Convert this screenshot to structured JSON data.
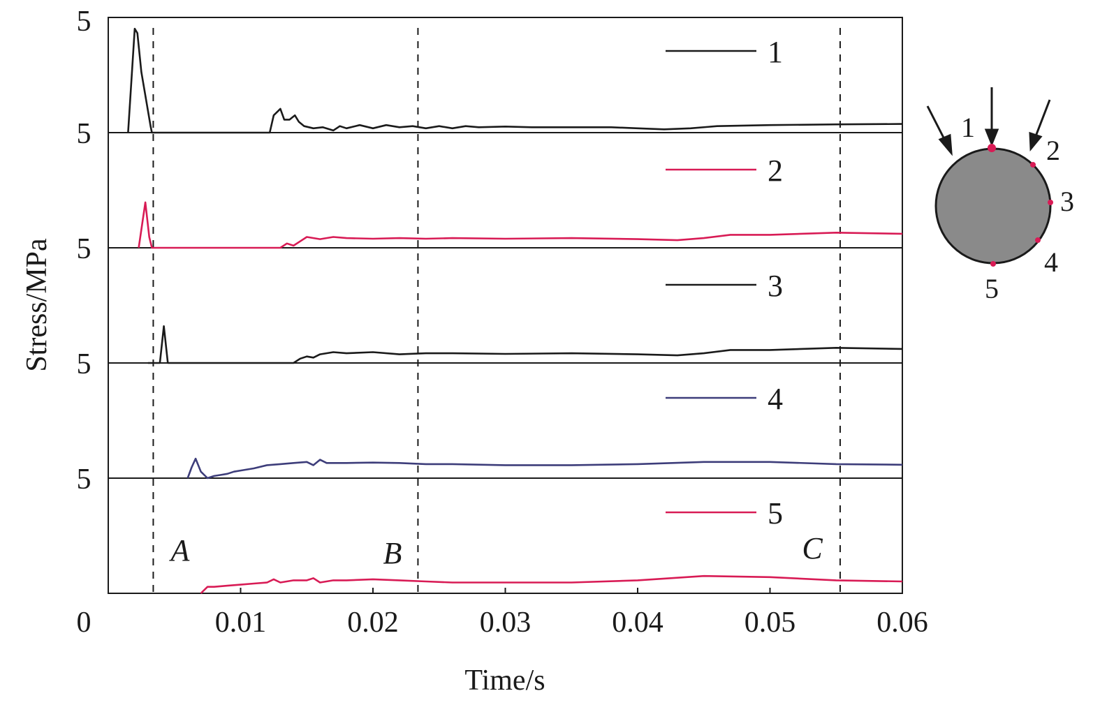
{
  "chart_data": {
    "type": "line",
    "layout": "stacked-panels",
    "xlabel": "Time/s",
    "ylabel": "Stress/MPa",
    "xlim": [
      0,
      0.06
    ],
    "x_ticks": [
      "0",
      "0.01",
      "0.02",
      "0.03",
      "0.04",
      "0.05",
      "0.06"
    ],
    "panel_y_tick_label": "5",
    "y_tick_labels": [
      "5",
      "5",
      "5",
      "5",
      "5"
    ],
    "panel_ylim": [
      0,
      5
    ],
    "markers": [
      {
        "label": "A",
        "x": 0.0034
      },
      {
        "label": "B",
        "x": 0.0234
      },
      {
        "label": "C",
        "x": 0.0553
      }
    ],
    "legend": [
      "1",
      "2",
      "3",
      "4",
      "5"
    ],
    "series": [
      {
        "name": "1",
        "color": "#1a1a1a",
        "x": [
          0.0015,
          0.002,
          0.0022,
          0.0025,
          0.0032,
          0.0033,
          0.0122,
          0.0125,
          0.013,
          0.0133,
          0.0137,
          0.0141,
          0.0144,
          0.0148,
          0.0155,
          0.0162,
          0.017,
          0.0175,
          0.018,
          0.019,
          0.02,
          0.021,
          0.022,
          0.023,
          0.024,
          0.025,
          0.026,
          0.027,
          0.028,
          0.03,
          0.032,
          0.035,
          0.038,
          0.04,
          0.042,
          0.044,
          0.046,
          0.05,
          0.055,
          0.06
        ],
        "y": [
          0,
          4.8,
          4.6,
          2.8,
          0.3,
          0,
          0,
          0.8,
          1.1,
          0.6,
          0.6,
          0.8,
          0.5,
          0.3,
          0.2,
          0.25,
          0.1,
          0.3,
          0.2,
          0.35,
          0.2,
          0.35,
          0.25,
          0.3,
          0.2,
          0.3,
          0.2,
          0.3,
          0.25,
          0.28,
          0.25,
          0.25,
          0.25,
          0.2,
          0.15,
          0.2,
          0.3,
          0.35,
          0.38,
          0.4
        ]
      },
      {
        "name": "2",
        "color": "#d81b55",
        "x": [
          0.0023,
          0.0028,
          0.0031,
          0.0033,
          0.013,
          0.0135,
          0.014,
          0.0145,
          0.015,
          0.016,
          0.017,
          0.018,
          0.02,
          0.022,
          0.024,
          0.026,
          0.03,
          0.035,
          0.04,
          0.043,
          0.045,
          0.047,
          0.05,
          0.055,
          0.06
        ],
        "y": [
          0,
          2.1,
          0.5,
          0,
          0,
          0.2,
          0.1,
          0.3,
          0.5,
          0.4,
          0.5,
          0.45,
          0.42,
          0.45,
          0.42,
          0.45,
          0.42,
          0.45,
          0.4,
          0.35,
          0.45,
          0.6,
          0.6,
          0.7,
          0.65
        ]
      },
      {
        "name": "3",
        "color": "#1a1a1a",
        "x": [
          0.003,
          0.0039,
          0.0042,
          0.0045,
          0.014,
          0.0145,
          0.015,
          0.0155,
          0.016,
          0.017,
          0.018,
          0.02,
          0.022,
          0.024,
          0.026,
          0.03,
          0.035,
          0.04,
          0.043,
          0.045,
          0.047,
          0.05,
          0.055,
          0.06
        ],
        "y": [
          0,
          0,
          1.7,
          0,
          0,
          0.2,
          0.3,
          0.25,
          0.4,
          0.5,
          0.45,
          0.5,
          0.4,
          0.45,
          0.45,
          0.42,
          0.45,
          0.4,
          0.35,
          0.45,
          0.6,
          0.6,
          0.7,
          0.65
        ]
      },
      {
        "name": "4",
        "color": "#3d3d7a",
        "x": [
          0.006,
          0.0063,
          0.0066,
          0.007,
          0.0075,
          0.008,
          0.0085,
          0.009,
          0.0095,
          0.01,
          0.011,
          0.012,
          0.013,
          0.014,
          0.015,
          0.0155,
          0.016,
          0.0165,
          0.017,
          0.018,
          0.02,
          0.022,
          0.024,
          0.026,
          0.03,
          0.035,
          0.04,
          0.045,
          0.05,
          0.055,
          0.06
        ],
        "y": [
          0,
          0.5,
          0.9,
          0.3,
          0,
          0.1,
          0.15,
          0.2,
          0.3,
          0.35,
          0.45,
          0.6,
          0.65,
          0.7,
          0.75,
          0.6,
          0.85,
          0.7,
          0.7,
          0.7,
          0.72,
          0.7,
          0.65,
          0.65,
          0.6,
          0.6,
          0.65,
          0.75,
          0.75,
          0.65,
          0.62
        ]
      },
      {
        "name": "5",
        "color": "#d81b55",
        "x": [
          0.007,
          0.0075,
          0.008,
          0.009,
          0.01,
          0.011,
          0.012,
          0.0125,
          0.013,
          0.014,
          0.015,
          0.0155,
          0.016,
          0.017,
          0.018,
          0.02,
          0.022,
          0.024,
          0.026,
          0.03,
          0.035,
          0.04,
          0.045,
          0.05,
          0.055,
          0.06
        ],
        "y": [
          0,
          0.3,
          0.3,
          0.35,
          0.4,
          0.45,
          0.5,
          0.65,
          0.5,
          0.6,
          0.6,
          0.7,
          0.5,
          0.6,
          0.6,
          0.65,
          0.6,
          0.55,
          0.5,
          0.5,
          0.5,
          0.6,
          0.8,
          0.75,
          0.6,
          0.55
        ]
      }
    ]
  },
  "inset": {
    "points": [
      "1",
      "2",
      "3",
      "4",
      "5"
    ],
    "circle_color": "#8a8a8a",
    "point_color": "#d81b55"
  }
}
